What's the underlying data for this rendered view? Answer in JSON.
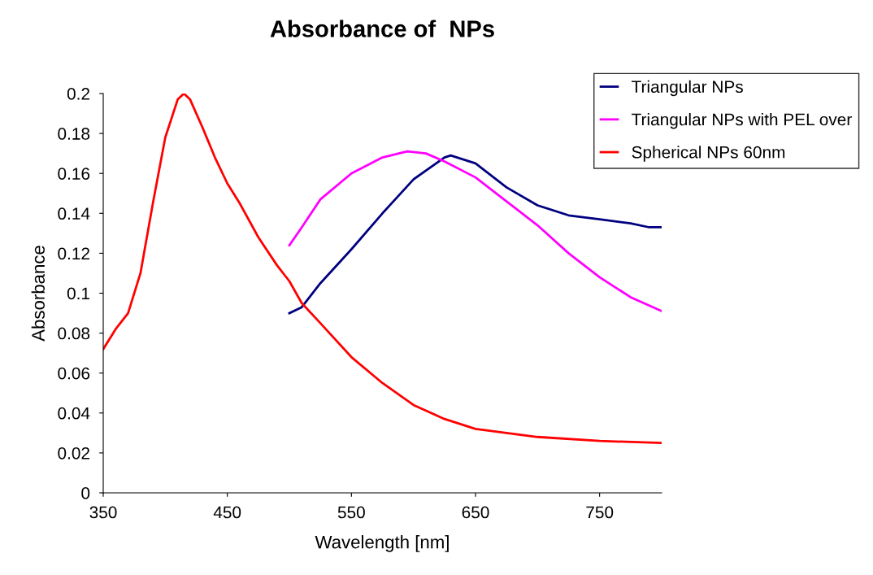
{
  "chart_data": {
    "type": "line",
    "title": "Absorbance of  NPs",
    "xlabel": "Wavelength [nm]",
    "ylabel": "Absorbance",
    "xlim": [
      350,
      800
    ],
    "xticks": [
      350,
      450,
      550,
      650,
      750
    ],
    "ylim": [
      0,
      0.2
    ],
    "yticks": [
      0,
      0.02,
      0.04,
      0.06,
      0.08,
      0.1,
      0.12,
      0.14,
      0.16,
      0.18,
      0.2
    ],
    "grid": false,
    "legend": "top right",
    "marker": "none",
    "line_style": "solid",
    "series": [
      {
        "name": "Triangular NPs",
        "color": "#000080",
        "x": [
          500,
          510,
          525,
          550,
          575,
          600,
          625,
          630,
          650,
          675,
          700,
          725,
          750,
          775,
          790,
          800
        ],
        "values": [
          0.09,
          0.093,
          0.105,
          0.122,
          0.14,
          0.157,
          0.168,
          0.169,
          0.165,
          0.153,
          0.144,
          0.139,
          0.137,
          0.135,
          0.133,
          0.133
        ]
      },
      {
        "name": "Triangular NPs with PEL over",
        "color": "#ff00ff",
        "x": [
          500,
          510,
          525,
          550,
          575,
          595,
          610,
          625,
          650,
          675,
          700,
          725,
          750,
          775,
          800
        ],
        "values": [
          0.124,
          0.133,
          0.147,
          0.16,
          0.168,
          0.171,
          0.17,
          0.166,
          0.158,
          0.146,
          0.134,
          0.12,
          0.108,
          0.098,
          0.091
        ]
      },
      {
        "name": "Spherical NPs 60nm",
        "color": "#ff0000",
        "x": [
          350,
          360,
          370,
          380,
          390,
          400,
          410,
          415,
          420,
          430,
          440,
          450,
          460,
          475,
          490,
          500,
          510,
          525,
          550,
          575,
          600,
          625,
          650,
          700,
          750,
          800
        ],
        "values": [
          0.072,
          0.082,
          0.09,
          0.11,
          0.145,
          0.178,
          0.197,
          0.2,
          0.197,
          0.183,
          0.168,
          0.155,
          0.145,
          0.128,
          0.114,
          0.106,
          0.095,
          0.085,
          0.068,
          0.055,
          0.044,
          0.037,
          0.032,
          0.028,
          0.026,
          0.025
        ]
      }
    ]
  }
}
